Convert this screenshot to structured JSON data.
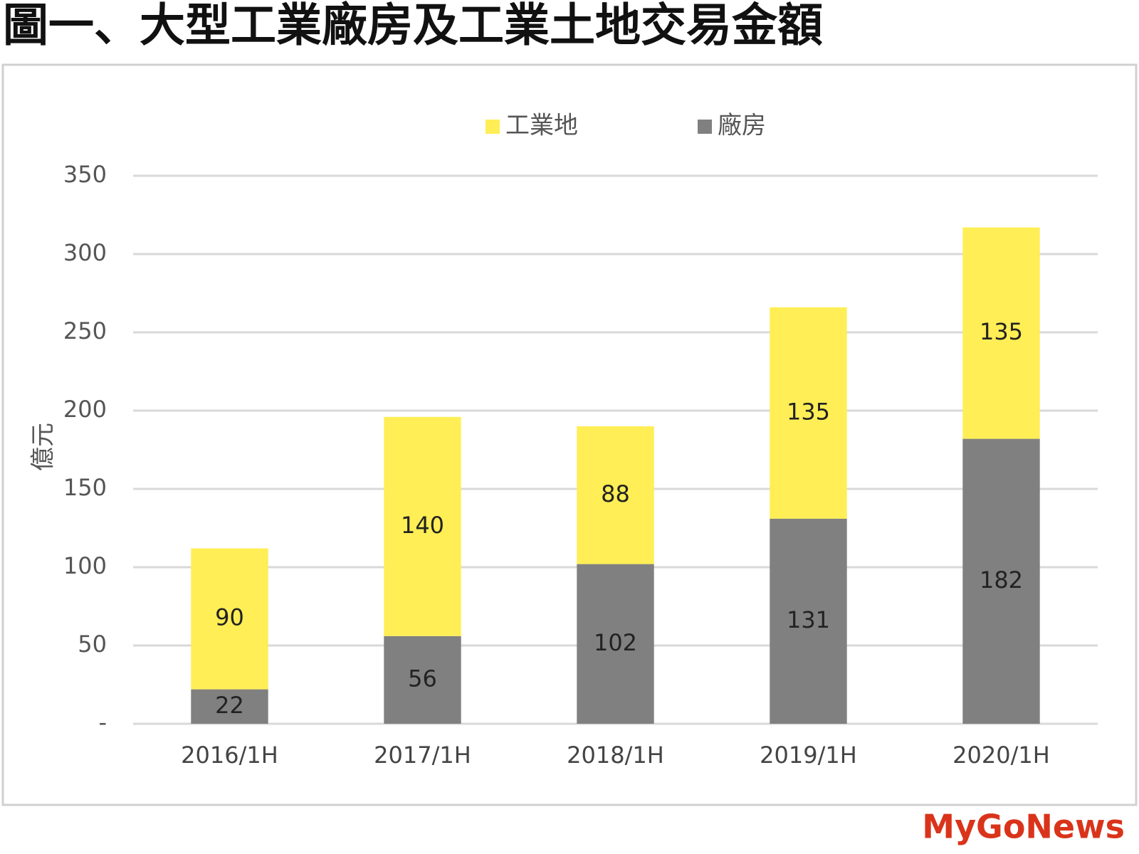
{
  "chart_data": {
    "type": "stacked_bar",
    "title": "圖一、大型工業廠房及工業土地交易金額",
    "y_label": "億元",
    "categories": [
      "2016/1H",
      "2017/1H",
      "2018/1H",
      "2019/1H",
      "2020/1H"
    ],
    "series": [
      {
        "name": "廠房",
        "color": "#808080",
        "values": [
          22,
          56,
          102,
          131,
          182
        ]
      },
      {
        "name": "工業地",
        "color": "#ffee55",
        "values": [
          90,
          140,
          88,
          135,
          135
        ]
      }
    ],
    "ylim": [
      0,
      350
    ],
    "yticks": [
      {
        "value": 0,
        "label": "-"
      },
      50,
      100,
      150,
      200,
      250,
      300,
      350
    ],
    "grid": true,
    "legend": "top",
    "watermark": "MyGoNews"
  }
}
